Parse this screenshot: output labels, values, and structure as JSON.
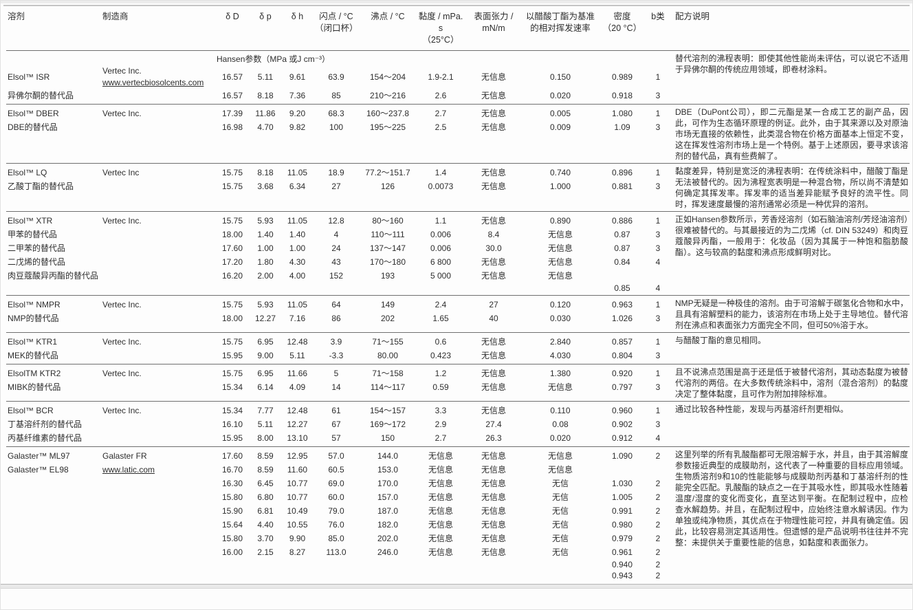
{
  "header": {
    "solvent": "溶剂",
    "manufacturer": "制造商",
    "dD": "δ D",
    "dp": "δ p",
    "dh": "δ h",
    "flash1": "闪点 / °C",
    "flash2": "（闭口杯）",
    "bp": "沸点 / °C",
    "visc1": "黏度 / mPa. s",
    "visc2": "（25°C）",
    "surf1": "表面张力 /",
    "surf2": "mN/m",
    "evap1": "以醋酸丁酯为基准",
    "evap2": "的相对挥发速率",
    "dens1": "密度",
    "dens2": "（20 °C）",
    "bclass": "b类",
    "notes": "配方说明",
    "hansen": "Hansen参数（MPa 或J cm⁻³）"
  },
  "sections": [
    {
      "rows": [
        {
          "name": "Elsol™ ISR",
          "mfr": "Vertec Inc.",
          "mfr2": "www.vertecbiosolcents.com",
          "d": "16.57",
          "p": "5.11",
          "h": "9.61",
          "fp": "63.9",
          "bp": "154～204",
          "vi": "1.9-2.1",
          "st": "无信息",
          "ev": "0.150",
          "de": "0.989",
          "b": "1"
        },
        {
          "name": "异佛尔酮的替代品",
          "d": "16.57",
          "p": "8.18",
          "h": "7.36",
          "fp": "85",
          "bp": "210～216",
          "vi": "2.6",
          "st": "无信息",
          "ev": "0.020",
          "de": "0.918",
          "b": "3"
        }
      ],
      "note": "替代溶剂的沸程表明：即使其他性能尚未评估，可以说它不适用于异佛尔酮的传统应用领域，即卷材涂料。"
    },
    {
      "rows": [
        {
          "name": "Elsol™ DBER",
          "mfr": "Vertec Inc.",
          "d": "17.39",
          "p": "11.86",
          "h": "9.20",
          "fp": "68.3",
          "bp": "160～237.8",
          "vi": "2.7",
          "st": "无信息",
          "ev": "0.005",
          "de": "1.080",
          "b": "1"
        },
        {
          "name": "DBE的替代品",
          "d": "16.98",
          "p": "4.70",
          "h": "9.82",
          "fp": "100",
          "bp": "195～225",
          "vi": "2.5",
          "st": "无信息",
          "ev": "0.009",
          "de": "1.09",
          "b": "3"
        }
      ],
      "note": "DBE（DuPont公司），即二元酯是某一合成工艺的副产品，因此，可作为生态循环原理的例证。此外，由于其来源以及对原油市场无直接的依赖性，此类混合物在价格方面基本上恒定不变，这在挥发性溶剂市场上是一个特例。基于上述原因，要寻求该溶剂的替代品，真有些费解了。"
    },
    {
      "rows": [
        {
          "name": "Elsol™ LQ",
          "mfr": "Vertec Inc",
          "d": "15.75",
          "p": "8.18",
          "h": "11.05",
          "fp": "18.9",
          "bp": "77.2～151.7",
          "vi": "1.4",
          "st": "无信息",
          "ev": "0.740",
          "de": "0.896",
          "b": "1"
        },
        {
          "name": "乙酸丁酯的替代品",
          "d": "15.75",
          "p": "3.68",
          "h": "6.34",
          "fp": "27",
          "bp": "126",
          "vi": "0.0073",
          "st": "无信息",
          "ev": "1.000",
          "de": "0.881",
          "b": "3"
        }
      ],
      "note": "黏度差异，特别是宽泛的沸程表明：在传统涂料中，醋酸丁酯是无法被替代的。因为沸程宽表明是一种混合物，所以尚不清楚如何确定其挥发率。挥发率的适当差异能赋予良好的流平性。同时，挥发速度最慢的溶剂通常必须是一种优异的溶剂。"
    },
    {
      "rows": [
        {
          "name": "Elsol™ XTR",
          "mfr": "Vertec Inc.",
          "d": "15.75",
          "p": "5.93",
          "h": "11.05",
          "fp": "12.8",
          "bp": "80～160",
          "vi": "1.1",
          "st": "无信息",
          "ev": "0.890",
          "de": "0.886",
          "b": "1"
        },
        {
          "name": "甲苯的替代品",
          "d": "18.00",
          "p": "1.40",
          "h": "1.40",
          "fp": "4",
          "bp": "110～111",
          "vi": "0.006",
          "st": "8.4",
          "ev": "无信息",
          "de": "0.87",
          "b": "3"
        },
        {
          "name": "二甲苯的替代品",
          "d": "17.60",
          "p": "1.00",
          "h": "1.00",
          "fp": "24",
          "bp": "137～147",
          "vi": "0.006",
          "st": "30.0",
          "ev": "无信息",
          "de": "0.87",
          "b": "3"
        },
        {
          "name": "二戊烯的替代品",
          "d": "17.20",
          "p": "1.80",
          "h": "4.30",
          "fp": "43",
          "bp": "170～180",
          "vi": "6 800",
          "st": "无信息",
          "ev": "无信息",
          "de": "0.84",
          "b": "4"
        },
        {
          "name": "肉豆蔻酸异丙酯的替代品",
          "d": "16.20",
          "p": "2.00",
          "h": "4.00",
          "fp": "152",
          "bp": "193",
          "vi": "5 000",
          "st": "无信息",
          "ev": "无信息"
        },
        {
          "de": "0.85",
          "b": "4"
        }
      ],
      "note": "正如Hansen参数所示，芳香烃溶剂（如石脑油溶剂/芳烃油溶剂）很难被替代的。与其最接近的为二戊烯（cf. DIN 53249）和肉豆蔻酸异丙酯，一般用于：化妆品（因为其属于一种饱和脂肪酸酯）。这与较高的黏度和沸点形成鲜明对比。"
    },
    {
      "rows": [
        {
          "name": "Elsol™ NMPR",
          "mfr": "Vertec Inc.",
          "d": "15.75",
          "p": "5.93",
          "h": "11.05",
          "fp": "64",
          "bp": "149",
          "vi": "2.4",
          "st": "27",
          "ev": "0.120",
          "de": "0.963",
          "b": "1"
        },
        {
          "name": "NMP的替代品",
          "d": "18.00",
          "p": "12.27",
          "h": "7.16",
          "fp": "86",
          "bp": "202",
          "vi": "1.65",
          "st": "40",
          "ev": "0.030",
          "de": "1.026",
          "b": "3"
        }
      ],
      "note": "NMP无疑是一种极佳的溶剂。由于可溶解于碳氢化合物和水中，且具有溶解塑料的能力，该溶剂在市场上处于主导地位。替代溶剂在沸点和表面张力方面完全不同，但可50%溶于水。"
    },
    {
      "rows": [
        {
          "name": "Elsol™ KTR1",
          "mfr": "Vertec Inc.",
          "d": "15.75",
          "p": "6.95",
          "h": "12.48",
          "fp": "3.9",
          "bp": "71～155",
          "vi": "0.6",
          "st": "无信息",
          "ev": "2.840",
          "de": "0.857",
          "b": "1"
        },
        {
          "name": "MEK的替代品",
          "d": "15.95",
          "p": "9.00",
          "h": "5.11",
          "fp": "-3.3",
          "bp": "80.00",
          "vi": "0.423",
          "st": "无信息",
          "ev": "4.030",
          "de": "0.804",
          "b": "3"
        }
      ],
      "note": "与醋酸丁酯的意见相同。"
    },
    {
      "rows": [
        {
          "name": "ElsolTM KTR2",
          "mfr": "Vertec Inc.",
          "d": "15.75",
          "p": "6.95",
          "h": "11.66",
          "fp": "5",
          "bp": "71～158",
          "vi": "1.2",
          "st": "无信息",
          "ev": "1.380",
          "de": "0.920",
          "b": "1"
        },
        {
          "name": "MIBK的替代品",
          "d": "15.34",
          "p": "6.14",
          "h": "4.09",
          "fp": "14",
          "bp": "114～117",
          "vi": "0.59",
          "st": "无信息",
          "ev": "无信息",
          "de": "0.797",
          "b": "3"
        }
      ],
      "note": "且不说沸点范围是高于还是低于被替代溶剂，其动态黏度为被替代溶剂的两倍。在大多数传统涂料中，溶剂（混合溶剂）的黏度决定了整体黏度，且可作为附加排除标准。"
    },
    {
      "rows": [
        {
          "name": "Elsol™ BCR",
          "mfr": "Vertec Inc.",
          "d": "15.34",
          "p": "7.77",
          "h": "12.48",
          "fp": "61",
          "bp": "154～157",
          "vi": "3.3",
          "st": "无信息",
          "ev": "0.110",
          "de": "0.960",
          "b": "1"
        },
        {
          "name": "丁基溶纤剂的替代品",
          "d": "16.10",
          "p": "5.11",
          "h": "12.27",
          "fp": "67",
          "bp": "169～172",
          "vi": "2.9",
          "st": "27.4",
          "ev": "0.08",
          "de": "0.902",
          "b": "3"
        },
        {
          "name": "丙基纤维素的替代品",
          "d": "15.95",
          "p": "8.00",
          "h": "13.10",
          "fp": "57",
          "bp": "150",
          "vi": "2.7",
          "st": "26.3",
          "ev": "0.020",
          "de": "0.912",
          "b": "4"
        }
      ],
      "note": "通过比较各种性能，发现与丙基溶纤剂更相似。"
    },
    {
      "rows": [
        {
          "name": "Galaster™ ML97",
          "mfr": "Galaster FR",
          "d": "17.60",
          "p": "8.59",
          "h": "12.95",
          "fp": "57.0",
          "bp": "144.0",
          "vi": "无信息",
          "st": "无信息",
          "ev": "无信息",
          "de": "1.090",
          "b": "2"
        },
        {
          "name": "Galaster™ EL98",
          "mfr": "www.latic.com",
          "d": "16.70",
          "p": "8.59",
          "h": "11.60",
          "fp": "60.5",
          "bp": "153.0",
          "vi": "无信息",
          "st": "无信息",
          "ev": "无信息"
        },
        {
          "d": "16.30",
          "p": "6.45",
          "h": "10.77",
          "fp": "69.0",
          "bp": "170.0",
          "vi": "无信息",
          "st": "无信息",
          "ev": "无信",
          "de": "1.030",
          "b": "2"
        },
        {
          "d": "15.80",
          "p": "6.80",
          "h": "10.77",
          "fp": "60.0",
          "bp": "157.0",
          "vi": "无信息",
          "st": "无信息",
          "ev": "无信",
          "de": "1.005",
          "b": "2"
        },
        {
          "d": "15.90",
          "p": "6.81",
          "h": "10.49",
          "fp": "79.0",
          "bp": "187.0",
          "vi": "无信息",
          "st": "无信息",
          "ev": "无信",
          "de": "0.991",
          "b": "2"
        },
        {
          "d": "15.64",
          "p": "4.40",
          "h": "10.55",
          "fp": "76.0",
          "bp": "182.0",
          "vi": "无信息",
          "st": "无信息",
          "ev": "无信",
          "de": "0.980",
          "b": "2"
        },
        {
          "d": "15.80",
          "p": "3.70",
          "h": "9.90",
          "fp": "85.0",
          "bp": "202.0",
          "vi": "无信息",
          "st": "无信息",
          "ev": "无信",
          "de": "0.979",
          "b": "2"
        },
        {
          "d": "16.00",
          "p": "2.15",
          "h": "8.27",
          "fp": "113.0",
          "bp": "246.0",
          "vi": "无信息",
          "st": "无信息",
          "ev": "无信",
          "de": "0.961",
          "b": "2"
        },
        {
          "de": "0.940",
          "b": "2"
        },
        {
          "de": "0.943",
          "b": "2"
        }
      ],
      "note": "这里列举的所有乳酸酯都可无限溶解于水，并且，由于其溶解度参数接近典型的成膜助剂，这代表了一种重要的目标应用领域。生物质溶剂9和10的性能能够与成膜助剂丙基和丁基溶纤剂的性能完全匹配。乳酸酯的缺点之一在于其吸水性，即其吸水性随着温度/湿度的变化而变化，直至达到平衡。在配制过程中，应检查水解趋势。并且，在配制过程中，应始终注意水解诱因。作为单独或纯净物质，其优点在于物理性能可控，并具有确定值。因此，比较容易测定其适用性。但遗憾的是产品说明书往往并不完整：未提供关于重要性能的信息，如黏度和表面张力。"
    }
  ]
}
